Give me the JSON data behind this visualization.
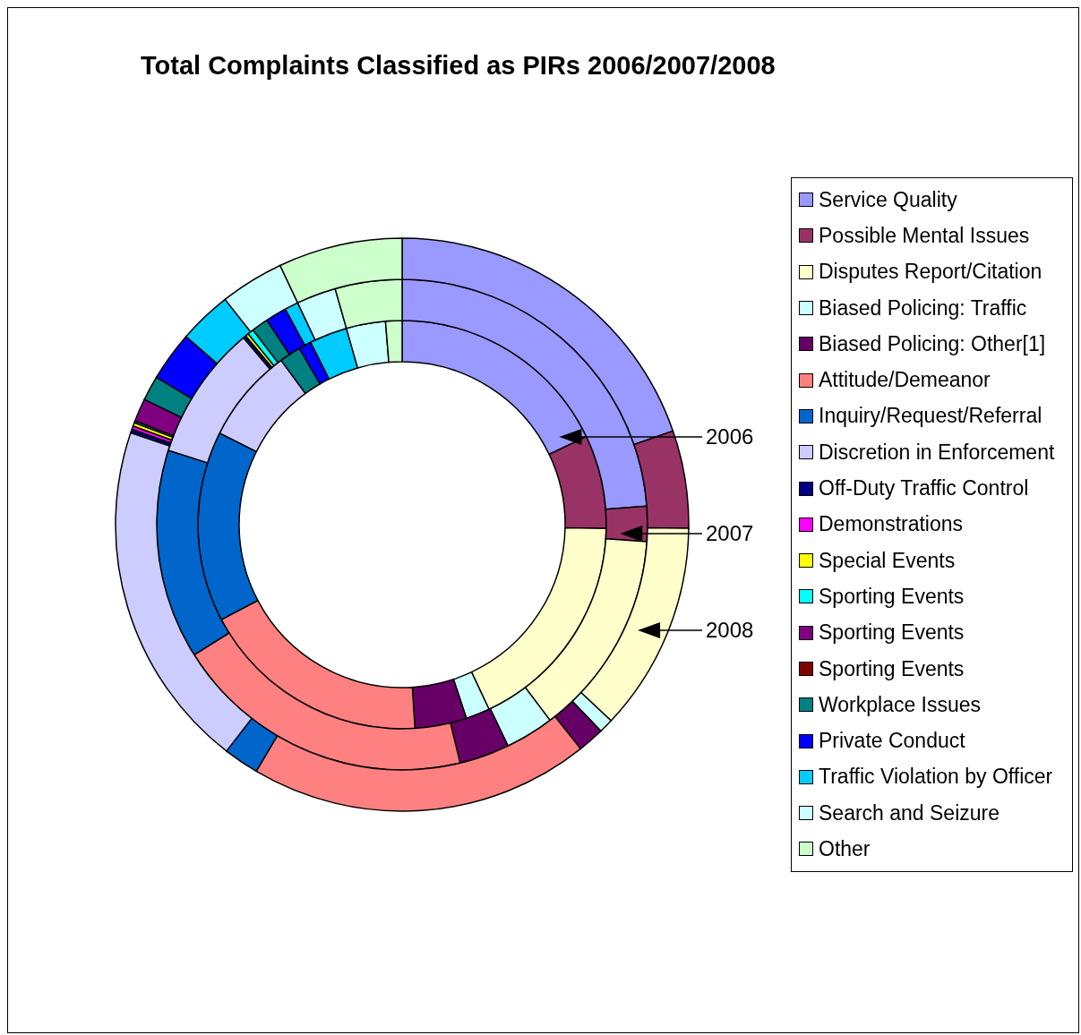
{
  "chart_data": {
    "type": "donut",
    "title": "Total Complaints Classified as PIRs 2006/2007/2008",
    "categories": [
      "Service Quality",
      "Possible Mental Issues",
      "Disputes Report/Citation",
      "Biased Policing: Traffic",
      "Biased Policing: Other[1]",
      "Attitude/Demeanor",
      "Inquiry/Request/Referral",
      "Discretion in Enforcement",
      "Off-Duty Traffic Control",
      "Demonstrations",
      "Special Events",
      "Sporting Events",
      "Sporting Events",
      "Sporting Events",
      "Workplace Issues",
      "Private Conduct",
      "Traffic Violation by Officer",
      "Search and Seizure",
      "Other"
    ],
    "colors": [
      "#9999ff",
      "#993366",
      "#ffffcc",
      "#ccffff",
      "#660066",
      "#ff8080",
      "#0066cc",
      "#ccccff",
      "#000080",
      "#ff00ff",
      "#ffff00",
      "#00ffff",
      "#800080",
      "#800000",
      "#008080",
      "#0000ff",
      "#00ccff",
      "#ccffff",
      "#ccffcc"
    ],
    "series": [
      {
        "name": "2006",
        "values": [
          17.9,
          7.4,
          17.7,
          1.9,
          4.1,
          18.3,
          15.1,
          7.5,
          0,
          0,
          0,
          0,
          0,
          0,
          1.7,
          1.0,
          3.0,
          3.1,
          1.3
        ]
      },
      {
        "name": "2007",
        "values": [
          23.8,
          2.3,
          13.6,
          3.2,
          3.3,
          19.9,
          13.8,
          8.9,
          0.2,
          0,
          0.2,
          0.4,
          0,
          0,
          1.1,
          1.4,
          0.9,
          2.6,
          4.4
        ]
      },
      {
        "name": "2008",
        "values": [
          19.7,
          5.5,
          11.8,
          0.8,
          1.5,
          19.2,
          2.0,
          19.7,
          0.2,
          0.2,
          0.2,
          0.1,
          1.3,
          0,
          1.4,
          2.8,
          3.0,
          3.6,
          7.0
        ]
      }
    ],
    "legend": "right"
  }
}
